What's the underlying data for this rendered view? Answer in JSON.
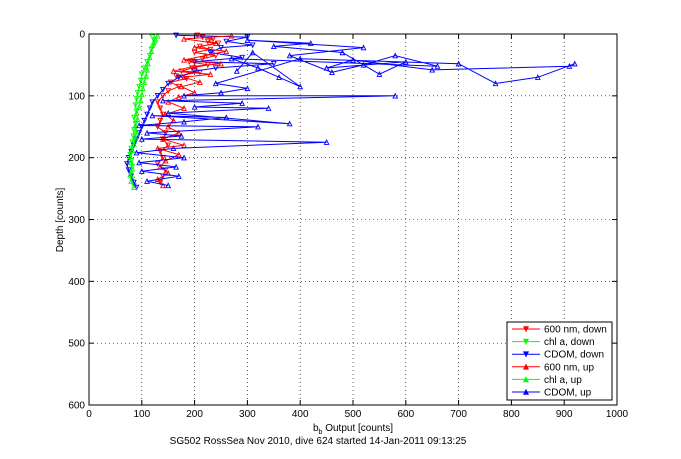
{
  "chart_data": {
    "type": "scatter",
    "xlabel_base": "b",
    "xlabel_sub": "b",
    "xlabel_rest": " Output [counts]",
    "ylabel": "Depth [counts]",
    "footer": "SG502 RossSea Nov 2010, dive 624 started 14-Jan-2011 09:13:25",
    "xlim": [
      0,
      1000
    ],
    "ylim": [
      0,
      600
    ],
    "y_reversed": true,
    "grid": true,
    "legend_position": "bottom-right",
    "x_ticks": [
      0,
      100,
      200,
      300,
      400,
      500,
      600,
      700,
      800,
      900,
      1000
    ],
    "y_ticks": [
      0,
      100,
      200,
      300,
      400,
      500,
      600
    ],
    "x_tick_labels": [
      "0",
      "100",
      "200",
      "300",
      "400",
      "500",
      "600",
      "700",
      "800",
      "900",
      "1000"
    ],
    "y_tick_labels": [
      "0",
      "100",
      "200",
      "300",
      "400",
      "500",
      "600"
    ],
    "series": [
      {
        "name": "600 nm, down",
        "color": "#ff0000",
        "marker": "triangle-down",
        "points": [
          [
            205,
            2
          ],
          [
            215,
            5
          ],
          [
            235,
            8
          ],
          [
            225,
            12
          ],
          [
            245,
            15
          ],
          [
            210,
            20
          ],
          [
            230,
            25
          ],
          [
            200,
            30
          ],
          [
            240,
            35
          ],
          [
            215,
            40
          ],
          [
            190,
            45
          ],
          [
            225,
            50
          ],
          [
            195,
            55
          ],
          [
            175,
            60
          ],
          [
            210,
            62
          ],
          [
            165,
            68
          ],
          [
            185,
            72
          ],
          [
            155,
            78
          ],
          [
            170,
            85
          ],
          [
            150,
            92
          ],
          [
            140,
            100
          ],
          [
            130,
            110
          ],
          [
            135,
            120
          ],
          [
            140,
            130
          ],
          [
            135,
            140
          ],
          [
            130,
            150
          ],
          [
            145,
            160
          ],
          [
            140,
            170
          ],
          [
            150,
            180
          ],
          [
            135,
            190
          ],
          [
            140,
            200
          ],
          [
            130,
            210
          ],
          [
            145,
            220
          ],
          [
            140,
            230
          ],
          [
            135,
            240
          ]
        ]
      },
      {
        "name": "chl a, down",
        "color": "#00ff00",
        "marker": "triangle-down",
        "points": [
          [
            120,
            5
          ],
          [
            125,
            15
          ],
          [
            118,
            25
          ],
          [
            115,
            35
          ],
          [
            110,
            45
          ],
          [
            105,
            55
          ],
          [
            100,
            65
          ],
          [
            98,
            75
          ],
          [
            95,
            85
          ],
          [
            92,
            95
          ],
          [
            90,
            105
          ],
          [
            88,
            115
          ],
          [
            90,
            125
          ],
          [
            85,
            135
          ],
          [
            88,
            145
          ],
          [
            85,
            155
          ],
          [
            84,
            165
          ],
          [
            82,
            175
          ],
          [
            80,
            185
          ],
          [
            78,
            195
          ],
          [
            80,
            205
          ],
          [
            82,
            215
          ],
          [
            80,
            225
          ],
          [
            82,
            235
          ],
          [
            85,
            245
          ]
        ]
      },
      {
        "name": "CDOM, down",
        "color": "#0000ff",
        "marker": "triangle-down",
        "points": [
          [
            165,
            2
          ],
          [
            300,
            5
          ],
          [
            260,
            12
          ],
          [
            310,
            18
          ],
          [
            250,
            22
          ],
          [
            230,
            30
          ],
          [
            290,
            38
          ],
          [
            200,
            45
          ],
          [
            350,
            48
          ],
          [
            240,
            55
          ],
          [
            200,
            60
          ],
          [
            170,
            70
          ],
          [
            150,
            80
          ],
          [
            140,
            90
          ],
          [
            130,
            100
          ],
          [
            120,
            110
          ],
          [
            115,
            120
          ],
          [
            110,
            130
          ],
          [
            105,
            140
          ],
          [
            100,
            150
          ],
          [
            95,
            160
          ],
          [
            90,
            170
          ],
          [
            85,
            180
          ],
          [
            80,
            190
          ],
          [
            75,
            200
          ],
          [
            72,
            210
          ],
          [
            75,
            220
          ],
          [
            80,
            230
          ],
          [
            85,
            240
          ],
          [
            90,
            248
          ]
        ]
      },
      {
        "name": "600 nm, up",
        "color": "#ff0000",
        "marker": "triangle-up",
        "points": [
          [
            140,
            245
          ],
          [
            130,
            235
          ],
          [
            150,
            225
          ],
          [
            135,
            215
          ],
          [
            145,
            205
          ],
          [
            170,
            195
          ],
          [
            130,
            185
          ],
          [
            180,
            180
          ],
          [
            140,
            170
          ],
          [
            170,
            160
          ],
          [
            150,
            150
          ],
          [
            160,
            140
          ],
          [
            145,
            130
          ],
          [
            180,
            120
          ],
          [
            150,
            110
          ],
          [
            170,
            102
          ],
          [
            200,
            95
          ],
          [
            175,
            85
          ],
          [
            210,
            78
          ],
          [
            180,
            70
          ],
          [
            230,
            65
          ],
          [
            160,
            60
          ],
          [
            200,
            52
          ],
          [
            250,
            48
          ],
          [
            180,
            42
          ],
          [
            220,
            35
          ],
          [
            260,
            28
          ],
          [
            200,
            22
          ],
          [
            240,
            15
          ],
          [
            180,
            8
          ],
          [
            270,
            3
          ]
        ]
      },
      {
        "name": "chl a, up",
        "color": "#00ff00",
        "marker": "triangle-up",
        "points": [
          [
            85,
            248
          ],
          [
            80,
            238
          ],
          [
            78,
            228
          ],
          [
            82,
            218
          ],
          [
            80,
            208
          ],
          [
            78,
            198
          ],
          [
            82,
            188
          ],
          [
            85,
            178
          ],
          [
            88,
            168
          ],
          [
            90,
            158
          ],
          [
            88,
            148
          ],
          [
            92,
            138
          ],
          [
            90,
            128
          ],
          [
            95,
            118
          ],
          [
            98,
            108
          ],
          [
            100,
            98
          ],
          [
            102,
            88
          ],
          [
            105,
            78
          ],
          [
            108,
            68
          ],
          [
            110,
            58
          ],
          [
            112,
            48
          ],
          [
            115,
            38
          ],
          [
            118,
            28
          ],
          [
            120,
            18
          ],
          [
            125,
            8
          ],
          [
            130,
            3
          ]
        ]
      },
      {
        "name": "CDOM, up",
        "color": "#0000ff",
        "marker": "triangle-up",
        "points": [
          [
            150,
            245
          ],
          [
            110,
            238
          ],
          [
            170,
            230
          ],
          [
            100,
            222
          ],
          [
            165,
            215
          ],
          [
            95,
            208
          ],
          [
            180,
            200
          ],
          [
            90,
            192
          ],
          [
            160,
            185
          ],
          [
            450,
            175
          ],
          [
            100,
            170
          ],
          [
            175,
            165
          ],
          [
            110,
            160
          ],
          [
            320,
            150
          ],
          [
            95,
            148
          ],
          [
            180,
            142
          ],
          [
            260,
            135
          ],
          [
            120,
            132
          ],
          [
            380,
            145
          ],
          [
            150,
            128
          ],
          [
            340,
            120
          ],
          [
            200,
            118
          ],
          [
            290,
            112
          ],
          [
            140,
            108
          ],
          [
            580,
            100
          ],
          [
            180,
            100
          ],
          [
            250,
            95
          ],
          [
            300,
            88
          ],
          [
            240,
            80
          ],
          [
            400,
            40
          ],
          [
            700,
            48
          ],
          [
            770,
            80
          ],
          [
            850,
            70
          ],
          [
            920,
            48
          ],
          [
            910,
            52
          ],
          [
            650,
            58
          ],
          [
            500,
            42
          ],
          [
            450,
            55
          ],
          [
            600,
            45
          ],
          [
            550,
            65
          ],
          [
            480,
            30
          ],
          [
            350,
            20
          ],
          [
            420,
            15
          ],
          [
            300,
            10
          ],
          [
            520,
            22
          ],
          [
            380,
            35
          ],
          [
            460,
            62
          ],
          [
            520,
            50
          ],
          [
            580,
            35
          ],
          [
            660,
            52
          ],
          [
            270,
            40
          ],
          [
            320,
            55
          ],
          [
            360,
            70
          ],
          [
            400,
            85
          ],
          [
            310,
            30
          ],
          [
            280,
            60
          ]
        ]
      }
    ]
  }
}
